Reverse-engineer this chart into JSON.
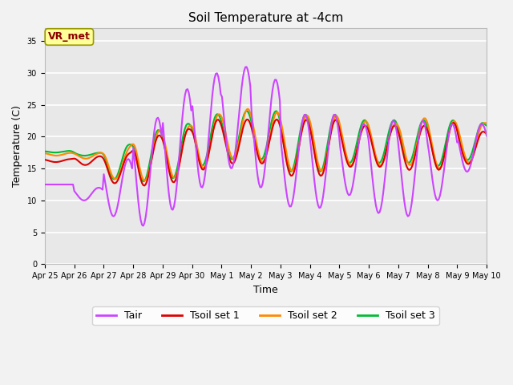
{
  "title": "Soil Temperature at -4cm",
  "xlabel": "Time",
  "ylabel": "Temperature (C)",
  "ylim": [
    0,
    37
  ],
  "yticks": [
    0,
    5,
    10,
    15,
    20,
    25,
    30,
    35
  ],
  "annotation_text": "VR_met",
  "annotation_color": "#8B0000",
  "annotation_bg": "#FFFF99",
  "annotation_edge": "#999900",
  "line_colors": {
    "Tair": "#CC44FF",
    "Tsoil1": "#DD0000",
    "Tsoil2": "#FF8800",
    "Tsoil3": "#00BB33"
  },
  "legend_labels": [
    "Tair",
    "Tsoil set 1",
    "Tsoil set 2",
    "Tsoil set 3"
  ],
  "fig_bg": "#F2F2F2",
  "plot_bg": "#E8E8E8",
  "grid_color": "#FFFFFF",
  "tick_fontsize": 7,
  "label_fontsize": 9,
  "title_fontsize": 11,
  "legend_fontsize": 9,
  "line_width": 1.5
}
